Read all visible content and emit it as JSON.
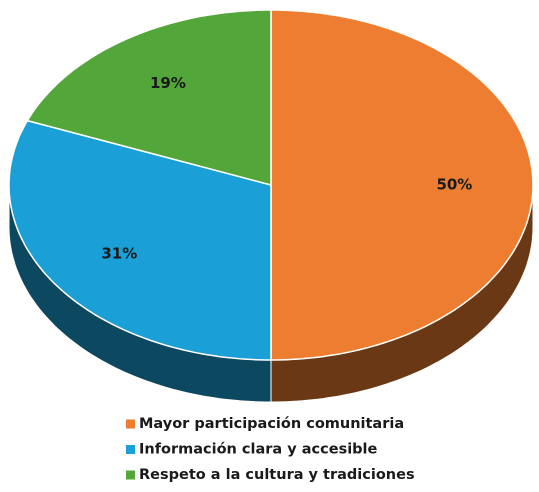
{
  "chart_data": {
    "type": "pie",
    "categories": [
      "Mayor participación comunitaria",
      "Información clara y accesible",
      "Respeto a la cultura y tradiciones"
    ],
    "values": [
      50,
      31,
      19
    ],
    "value_labels": [
      "50%",
      "31%",
      "19%"
    ],
    "colors": [
      "#ED7D31",
      "#1A9FD6",
      "#52A63A"
    ],
    "legend": "bottom"
  }
}
